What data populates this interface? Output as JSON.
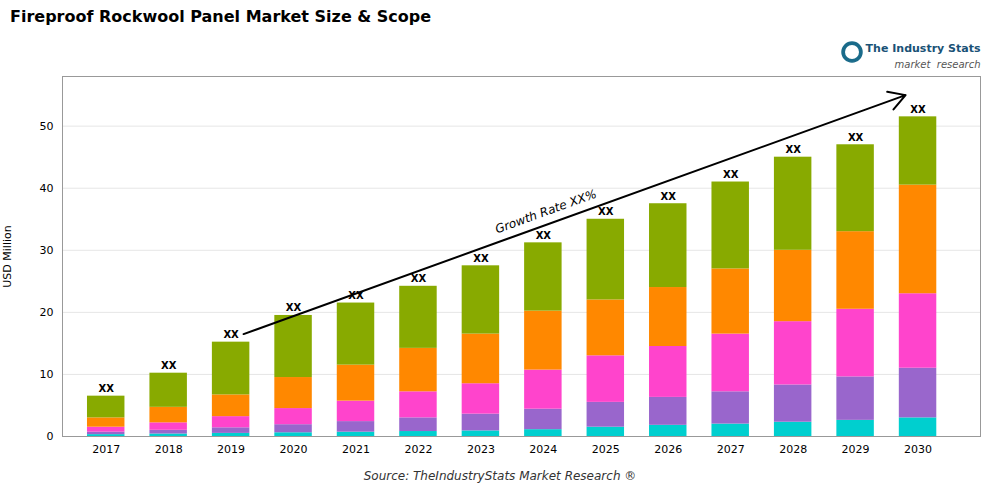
{
  "chart_data": {
    "type": "bar",
    "stacked": true,
    "title": "Fireproof Rockwool Panel Market Size & Scope",
    "ylabel": "USD Million",
    "source": "Source: TheIndustryStats Market Research ®",
    "logo_text": [
      "The Industry Stats",
      "market  research"
    ],
    "x": [
      2017,
      2018,
      2019,
      2020,
      2021,
      2022,
      2023,
      2024,
      2025,
      2026,
      2027,
      2028,
      2029,
      2030
    ],
    "series": [
      {
        "color": "#00CFCF",
        "values": [
          0.3,
          0.4,
          0.5,
          0.6,
          0.7,
          0.8,
          0.9,
          1.1,
          1.5,
          1.8,
          2.0,
          2.3,
          2.6,
          3.0
        ]
      },
      {
        "color": "#9966CC",
        "values": [
          0.4,
          0.6,
          0.9,
          1.3,
          1.7,
          2.2,
          2.7,
          3.3,
          4.0,
          4.5,
          5.2,
          6.0,
          7.0,
          8.0
        ]
      },
      {
        "color": "#FF44CC",
        "values": [
          0.8,
          1.2,
          1.8,
          2.6,
          3.3,
          4.2,
          4.9,
          6.3,
          7.5,
          8.2,
          9.3,
          10.2,
          10.9,
          12.0
        ]
      },
      {
        "color": "#FF8800",
        "values": [
          1.5,
          2.5,
          3.5,
          5.0,
          5.8,
          7.0,
          8.0,
          9.5,
          9.0,
          9.5,
          10.5,
          11.5,
          12.5,
          17.5
        ]
      },
      {
        "color": "#88AA00",
        "values": [
          3.5,
          5.5,
          8.5,
          10.0,
          10.0,
          10.0,
          11.0,
          11.0,
          13.0,
          13.5,
          14.0,
          15.0,
          14.0,
          11.0
        ]
      }
    ],
    "xlim": [
      2016.3,
      2031.0
    ],
    "xticks": [
      2017,
      2018,
      2019,
      2020,
      2021,
      2022,
      2023,
      2024,
      2025,
      2026,
      2027,
      2028,
      2029,
      2030
    ],
    "ylim": [
      0,
      58
    ],
    "yticks": [
      0,
      10,
      20,
      30,
      40,
      50
    ],
    "grid": true,
    "bar_labels": [
      {
        "text": "XX",
        "x": 2017,
        "y": 6.5
      },
      {
        "text": "XX",
        "x": 2018,
        "y": 10.2
      },
      {
        "text": "XX",
        "x": 2019,
        "y": 15.2
      },
      {
        "text": "XX",
        "x": 2020,
        "y": 19.5
      },
      {
        "text": "XX",
        "x": 2021,
        "y": 21.5
      },
      {
        "text": "XX",
        "x": 2022,
        "y": 24.2
      },
      {
        "text": "XX",
        "x": 2023,
        "y": 27.5
      },
      {
        "text": "XX",
        "x": 2024,
        "y": 31.2
      },
      {
        "text": "XX",
        "x": 2025,
        "y": 35.0
      },
      {
        "text": "XX",
        "x": 2026,
        "y": 37.5
      },
      {
        "text": "XX",
        "x": 2027,
        "y": 41.0
      },
      {
        "text": "XX",
        "x": 2028,
        "y": 45.0
      },
      {
        "text": "XX",
        "x": 2029,
        "y": 47.0
      },
      {
        "text": "XX",
        "x": 2030,
        "y": 51.5
      }
    ],
    "annotations": [
      {
        "text": "Growth Rate XX%",
        "x": 2024.2,
        "y": 33.0
      }
    ],
    "arrows": [
      {
        "x1": 2019.2,
        "y1": 16.5,
        "x2": 2029.8,
        "y2": 55.0
      }
    ]
  }
}
